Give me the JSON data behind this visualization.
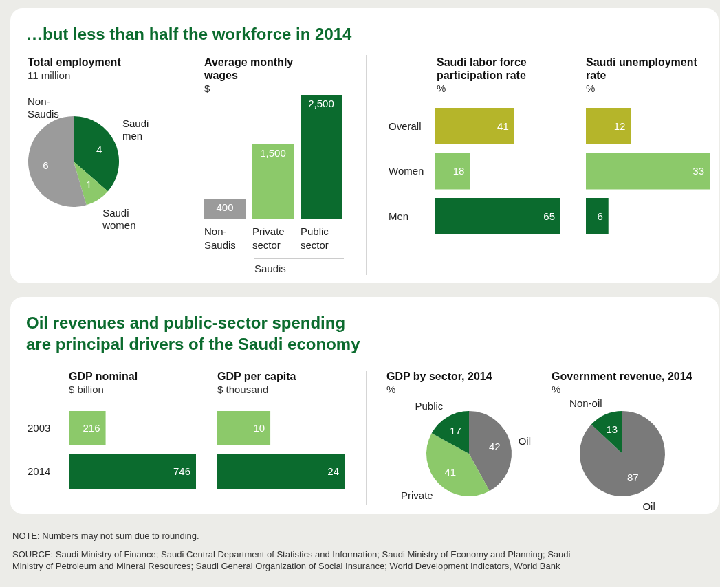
{
  "chart_data": [
    {
      "type": "pie",
      "title": "Total employment",
      "subtitle": "11 million",
      "annotations": [
        "…but less than half the workforce in 2014"
      ],
      "categories": [
        "Saudi men",
        "Saudi women",
        "Non-Saudis"
      ],
      "values": [
        4,
        1,
        6
      ],
      "colors": [
        "#0b6b2e",
        "#8cc96a",
        "#9b9b9b"
      ],
      "data_labels": true
    },
    {
      "type": "bar",
      "title": "Average monthly wages",
      "subtitle": "$",
      "annotations": [
        "Saudis"
      ],
      "categories": [
        "Non-Saudis",
        "Private sector",
        "Public sector"
      ],
      "values": [
        400,
        1500,
        2500
      ],
      "value_labels": [
        "400",
        "1,500",
        "2,500"
      ],
      "colors": [
        "#9b9b9b",
        "#8cc96a",
        "#0b6b2e"
      ]
    },
    {
      "type": "bar",
      "orientation": "horizontal",
      "title": "Saudi labor force participation rate",
      "subtitle": "%",
      "categories": [
        "Overall",
        "Women",
        "Men"
      ],
      "values": [
        41,
        18,
        65
      ],
      "colors": [
        "#b5b52a",
        "#8cc96a",
        "#0b6b2e"
      ],
      "data_labels": true
    },
    {
      "type": "bar",
      "orientation": "horizontal",
      "title": "Saudi unemployment rate",
      "subtitle": "%",
      "categories": [
        null,
        null,
        null
      ],
      "values": [
        12,
        33,
        6
      ],
      "colors": [
        "#b5b52a",
        "#8cc96a",
        "#0b6b2e"
      ],
      "data_labels": true
    },
    {
      "type": "bar",
      "orientation": "horizontal",
      "title": "GDP nominal",
      "subtitle": "$ billion",
      "annotations": [
        "Oil revenues and public-sector spending are principal drivers of the Saudi economy"
      ],
      "categories": [
        "2003",
        "2014"
      ],
      "values": [
        216,
        746
      ],
      "colors": [
        "#8cc96a",
        "#0b6b2e"
      ],
      "data_labels": true
    },
    {
      "type": "bar",
      "orientation": "horizontal",
      "title": "GDP per capita",
      "subtitle": "$ thousand",
      "categories": [
        null,
        null
      ],
      "values": [
        10,
        24
      ],
      "colors": [
        "#8cc96a",
        "#0b6b2e"
      ],
      "data_labels": true
    },
    {
      "type": "pie",
      "title": "GDP by sector, 2014",
      "subtitle": "%",
      "categories": [
        "Oil",
        "Private",
        "Public"
      ],
      "values": [
        42,
        41,
        17
      ],
      "colors": [
        "#7a7a7a",
        "#8cc96a",
        "#0b6b2e"
      ],
      "data_labels": true
    },
    {
      "type": "pie",
      "title": "Government revenue, 2014",
      "subtitle": "%",
      "annotations": [
        "NOTE: Numbers may not sum due to rounding.",
        "SOURCE: Saudi Ministry of Finance; Saudi Central Department of Statistics and Information; Saudi Ministry of Economy and Planning; Saudi Ministry of Petroleum and Mineral Resources; Saudi General Organization of Social Insurance; World Development Indicators, World Bank"
      ],
      "categories": [
        "Oil",
        "Non-oil"
      ],
      "values": [
        87,
        13
      ],
      "colors": [
        "#7a7a7a",
        "#0b6b2e"
      ],
      "data_labels": true
    }
  ]
}
